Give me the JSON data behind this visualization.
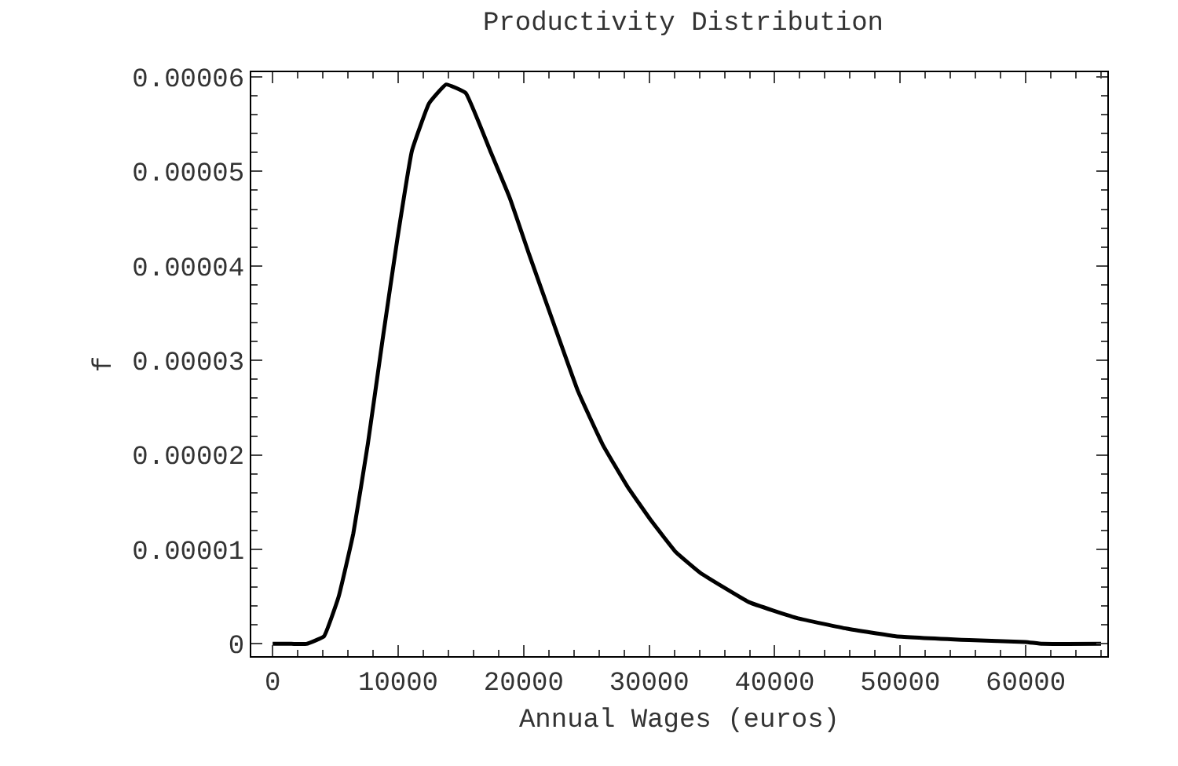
{
  "chart_data": {
    "type": "line",
    "title": "Productivity Distribution",
    "xlabel": "Annual Wages (euros)",
    "ylabel": "f",
    "x": [
      0,
      1500,
      2700,
      4090,
      5260,
      6430,
      7590,
      8760,
      9930,
      11100,
      12460,
      13820,
      15380,
      17330,
      18890,
      20440,
      22390,
      24340,
      26290,
      28240,
      30180,
      32130,
      34080,
      37970,
      41860,
      45760,
      49650,
      55490,
      59960,
      61330,
      66000
    ],
    "series": [
      {
        "color": "#000000",
        "values": [
          0,
          0,
          0,
          8e-07,
          5e-06,
          1.17e-05,
          2.12e-05,
          3.22e-05,
          4.28e-05,
          5.22e-05,
          5.72e-05,
          5.92e-05,
          5.83e-05,
          5.22e-05,
          4.72e-05,
          4.12e-05,
          3.39e-05,
          2.67e-05,
          2.11e-05,
          1.67e-05,
          1.3e-05,
          9.7e-06,
          7.5e-06,
          4.4e-06,
          2.7e-06,
          1.6e-06,
          8e-07,
          4e-07,
          2e-07,
          0,
          0
        ]
      }
    ],
    "xlim": [
      -1700,
      66500
    ],
    "xticks": [
      0,
      10000,
      20000,
      30000,
      40000,
      50000,
      60000
    ],
    "ylim": [
      -1.3e-06,
      6.05e-05
    ],
    "yticks": [
      0,
      {
        "value": 1e-05,
        "label": "0.00001"
      },
      {
        "value": 2e-05,
        "label": "0.00002"
      },
      {
        "value": 3e-05,
        "label": "0.00003"
      },
      {
        "value": 4e-05,
        "label": "0.00004"
      },
      {
        "value": 5e-05,
        "label": "0.00005"
      },
      {
        "value": 6e-05,
        "label": "0.00006"
      }
    ],
    "grid": false,
    "marker": "none",
    "line_style": "solid"
  }
}
